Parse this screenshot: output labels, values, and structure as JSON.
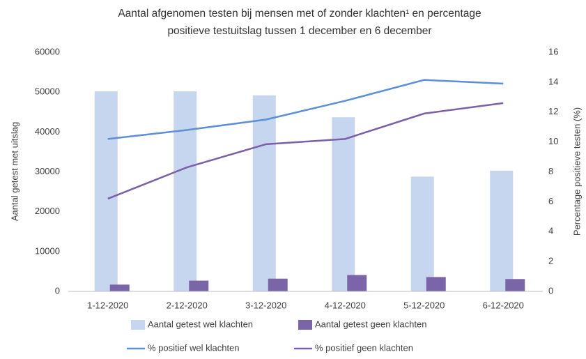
{
  "chart_data": {
    "type": "bar_line",
    "title": [
      "Aantal afgenomen testen bij mensen met of zonder klachten¹ en percentage",
      "positieve testuitslag tussen 1 december en 6 december"
    ],
    "ylabel": "Aantal getest met uitslag",
    "y2label": "Percentage positieve testen (%)",
    "categories": [
      "1-12-2020",
      "2-12-2020",
      "3-12-2020",
      "4-12-2020",
      "5-12-2020",
      "6-12-2020"
    ],
    "series": [
      {
        "name": "Aantal getest wel klachten",
        "type": "bar",
        "color": "#c6d6ef",
        "values": [
          50200,
          50200,
          49200,
          43700,
          28800,
          30300
        ]
      },
      {
        "name": "Aantal getest geen klachten",
        "type": "bar",
        "color": "#7b65a9",
        "values": [
          1700,
          2700,
          3200,
          4100,
          3600,
          3100
        ]
      },
      {
        "name": "% positief wel klachten",
        "type": "line",
        "axis": "y2",
        "color": "#5b8fd6",
        "values": [
          10.2,
          10.8,
          11.5,
          12.75,
          14.15,
          13.9
        ]
      },
      {
        "name": "% positief geen klachten",
        "type": "line",
        "axis": "y2",
        "color": "#7b5fa9",
        "values": [
          6.2,
          8.3,
          9.85,
          10.2,
          11.9,
          12.6
        ]
      }
    ],
    "ylim": [
      0,
      60000
    ],
    "yticks": [
      0,
      10000,
      20000,
      30000,
      40000,
      50000,
      60000
    ],
    "y2lim": [
      0,
      16
    ],
    "y2ticks": [
      0,
      2,
      4,
      6,
      8,
      10,
      12,
      14,
      16
    ],
    "grid": false
  }
}
